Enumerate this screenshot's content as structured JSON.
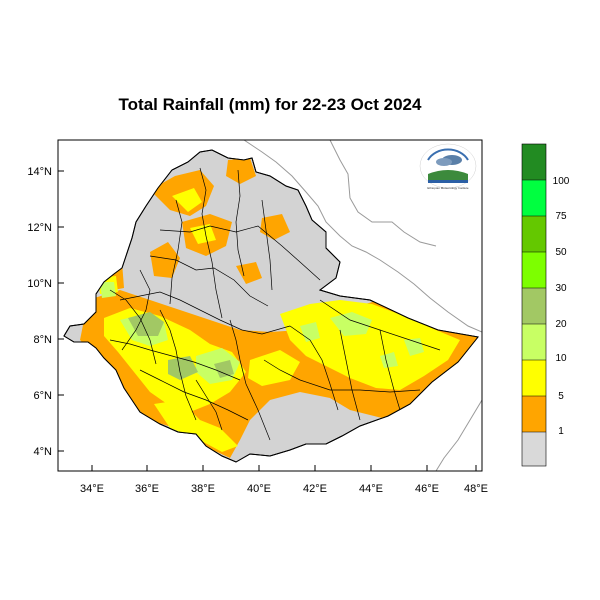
{
  "title": "Total Rainfall (mm) for 22-23 Oct 2024",
  "axes": {
    "y_ticks": [
      "14°N",
      "12°N",
      "10°N",
      "8°N",
      "6°N",
      "4°N"
    ],
    "x_ticks": [
      "34°E",
      "36°E",
      "38°E",
      "40°E",
      "42°E",
      "44°E",
      "46°E",
      "48°E"
    ],
    "lon_range": [
      33,
      48.2
    ],
    "lat_range": [
      3.2,
      15.0
    ]
  },
  "colorbar": {
    "labels": [
      "1",
      "5",
      "10",
      "20",
      "30",
      "50",
      "75",
      "100"
    ],
    "colors": [
      "#d9d9d9",
      "#ffa500",
      "#ffff00",
      "#c8ff64",
      "#a2c864",
      "#7dff00",
      "#64c800",
      "#00e632",
      "#00ff40",
      "#228b22"
    ],
    "thresholds_mm": [
      1,
      5,
      10,
      20,
      30,
      50,
      75,
      100
    ]
  },
  "logo": {
    "name": "ethiopian-meteorology-institute-logo",
    "text": "Ethiopian Meteorology Institute"
  }
}
